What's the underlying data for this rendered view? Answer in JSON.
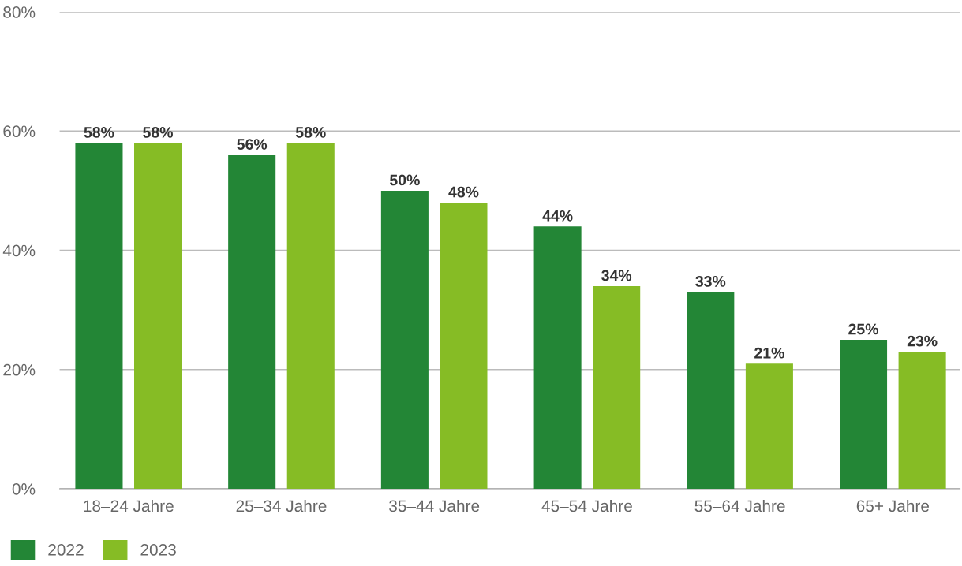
{
  "chart_data": {
    "type": "bar",
    "categories": [
      "18–24 Jahre",
      "25–34 Jahre",
      "35–44 Jahre",
      "45–54 Jahre",
      "55–64 Jahre",
      "65+ Jahre"
    ],
    "series": [
      {
        "name": "2022",
        "color": "#238636",
        "values": [
          58,
          56,
          50,
          44,
          33,
          25
        ],
        "value_labels": [
          "58%",
          "56%",
          "50%",
          "44%",
          "33%",
          "25%"
        ]
      },
      {
        "name": "2023",
        "color": "#86bc25",
        "values": [
          58,
          58,
          48,
          34,
          21,
          23
        ],
        "value_labels": [
          "58%",
          "58%",
          "48%",
          "34%",
          "21%",
          "23%"
        ]
      }
    ],
    "ylim": [
      0,
      80
    ],
    "yticks": [
      {
        "value": 0,
        "label": "0%"
      },
      {
        "value": 20,
        "label": "20%"
      },
      {
        "value": 40,
        "label": "40%"
      },
      {
        "value": 60,
        "label": "60%"
      },
      {
        "value": 80,
        "label": "80%"
      }
    ],
    "grid": "y",
    "legend": "bottom left"
  }
}
